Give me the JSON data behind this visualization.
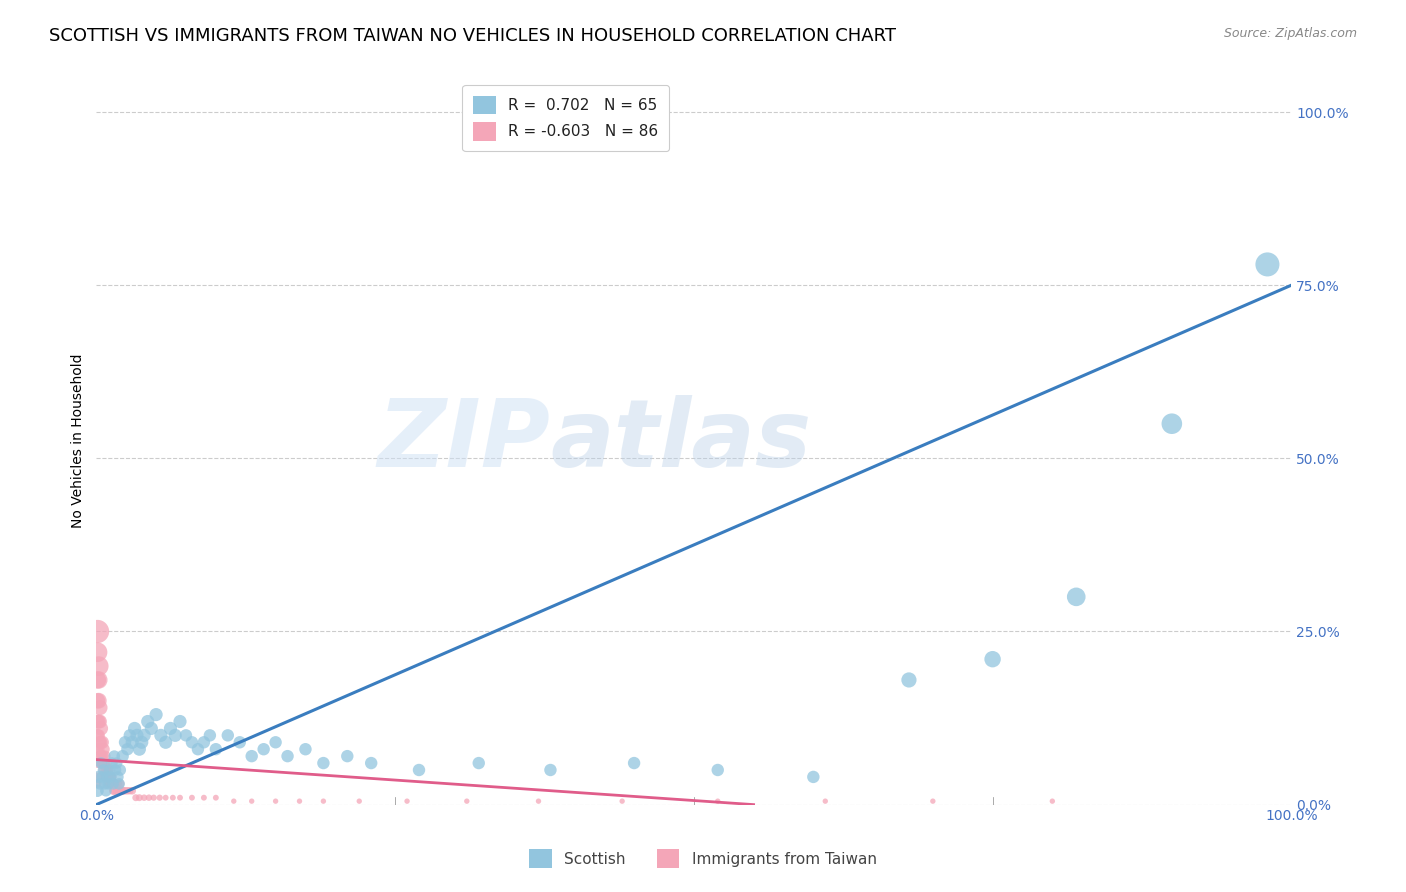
{
  "title": "SCOTTISH VS IMMIGRANTS FROM TAIWAN NO VEHICLES IN HOUSEHOLD CORRELATION CHART",
  "source": "Source: ZipAtlas.com",
  "ylabel": "No Vehicles in Household",
  "xlabel": "",
  "xlim": [
    0.0,
    1.0
  ],
  "ylim": [
    0.0,
    1.05
  ],
  "xtick_labels": [
    "0.0%",
    "100.0%"
  ],
  "ytick_labels": [
    "0.0%",
    "25.0%",
    "50.0%",
    "75.0%",
    "100.0%"
  ],
  "ytick_positions": [
    0.0,
    0.25,
    0.5,
    0.75,
    1.0
  ],
  "xtick_positions": [
    0.0,
    1.0
  ],
  "watermark_zip": "ZIP",
  "watermark_atlas": "atlas",
  "legend_r_blue": "R =  0.702",
  "legend_n_blue": "N = 65",
  "legend_r_pink": "R = -0.603",
  "legend_n_pink": "N = 86",
  "blue_color": "#92c5de",
  "pink_color": "#f4a6b8",
  "blue_line_color": "#3a7dbf",
  "pink_line_color": "#e05c8a",
  "blue_scatter": {
    "x": [
      0.001,
      0.002,
      0.003,
      0.004,
      0.005,
      0.006,
      0.007,
      0.008,
      0.009,
      0.01,
      0.011,
      0.012,
      0.013,
      0.014,
      0.015,
      0.016,
      0.017,
      0.018,
      0.019,
      0.02,
      0.022,
      0.024,
      0.026,
      0.028,
      0.03,
      0.032,
      0.034,
      0.036,
      0.038,
      0.04,
      0.043,
      0.046,
      0.05,
      0.054,
      0.058,
      0.062,
      0.066,
      0.07,
      0.075,
      0.08,
      0.085,
      0.09,
      0.095,
      0.1,
      0.11,
      0.12,
      0.13,
      0.14,
      0.15,
      0.16,
      0.175,
      0.19,
      0.21,
      0.23,
      0.27,
      0.32,
      0.38,
      0.45,
      0.52,
      0.6,
      0.68,
      0.75,
      0.82,
      0.9,
      0.98
    ],
    "y": [
      0.02,
      0.04,
      0.03,
      0.06,
      0.04,
      0.05,
      0.03,
      0.02,
      0.04,
      0.03,
      0.05,
      0.04,
      0.06,
      0.03,
      0.07,
      0.05,
      0.06,
      0.04,
      0.03,
      0.05,
      0.07,
      0.09,
      0.08,
      0.1,
      0.09,
      0.11,
      0.1,
      0.08,
      0.09,
      0.1,
      0.12,
      0.11,
      0.13,
      0.1,
      0.09,
      0.11,
      0.1,
      0.12,
      0.1,
      0.09,
      0.08,
      0.09,
      0.1,
      0.08,
      0.1,
      0.09,
      0.07,
      0.08,
      0.09,
      0.07,
      0.08,
      0.06,
      0.07,
      0.06,
      0.05,
      0.06,
      0.05,
      0.06,
      0.05,
      0.04,
      0.18,
      0.21,
      0.3,
      0.55,
      0.78
    ],
    "sizes": [
      80,
      80,
      70,
      70,
      70,
      70,
      70,
      70,
      70,
      70,
      70,
      70,
      70,
      70,
      70,
      70,
      70,
      70,
      70,
      70,
      80,
      80,
      80,
      80,
      90,
      90,
      90,
      90,
      90,
      90,
      90,
      90,
      90,
      90,
      90,
      90,
      90,
      90,
      80,
      80,
      80,
      80,
      80,
      80,
      80,
      80,
      80,
      80,
      80,
      80,
      80,
      80,
      80,
      80,
      80,
      80,
      80,
      80,
      80,
      80,
      120,
      140,
      180,
      220,
      300
    ]
  },
  "pink_scatter": {
    "x": [
      0.001,
      0.001,
      0.001,
      0.001,
      0.001,
      0.002,
      0.002,
      0.002,
      0.002,
      0.002,
      0.003,
      0.003,
      0.003,
      0.003,
      0.004,
      0.004,
      0.004,
      0.005,
      0.005,
      0.005,
      0.006,
      0.006,
      0.006,
      0.007,
      0.007,
      0.007,
      0.008,
      0.008,
      0.008,
      0.009,
      0.009,
      0.01,
      0.01,
      0.011,
      0.011,
      0.012,
      0.012,
      0.013,
      0.013,
      0.014,
      0.014,
      0.015,
      0.015,
      0.016,
      0.017,
      0.018,
      0.019,
      0.02,
      0.021,
      0.022,
      0.024,
      0.026,
      0.028,
      0.03,
      0.033,
      0.036,
      0.04,
      0.044,
      0.048,
      0.053,
      0.058,
      0.064,
      0.07,
      0.08,
      0.09,
      0.1,
      0.115,
      0.13,
      0.15,
      0.17,
      0.19,
      0.22,
      0.26,
      0.31,
      0.37,
      0.44,
      0.52,
      0.61,
      0.7,
      0.8,
      0.001,
      0.001,
      0.001,
      0.001,
      0.001,
      0.002
    ],
    "y": [
      0.22,
      0.18,
      0.15,
      0.12,
      0.1,
      0.18,
      0.15,
      0.12,
      0.1,
      0.08,
      0.14,
      0.12,
      0.09,
      0.07,
      0.11,
      0.09,
      0.07,
      0.09,
      0.07,
      0.06,
      0.08,
      0.06,
      0.05,
      0.07,
      0.06,
      0.04,
      0.06,
      0.05,
      0.04,
      0.05,
      0.04,
      0.05,
      0.03,
      0.04,
      0.03,
      0.04,
      0.03,
      0.04,
      0.03,
      0.03,
      0.02,
      0.03,
      0.02,
      0.03,
      0.02,
      0.03,
      0.02,
      0.03,
      0.02,
      0.02,
      0.02,
      0.02,
      0.02,
      0.02,
      0.01,
      0.01,
      0.01,
      0.01,
      0.01,
      0.01,
      0.01,
      0.01,
      0.01,
      0.01,
      0.01,
      0.01,
      0.005,
      0.005,
      0.005,
      0.005,
      0.005,
      0.005,
      0.005,
      0.005,
      0.005,
      0.005,
      0.005,
      0.005,
      0.005,
      0.005,
      0.08,
      0.06,
      0.04,
      0.03,
      0.25,
      0.2
    ],
    "sizes": [
      200,
      150,
      120,
      100,
      80,
      160,
      130,
      100,
      80,
      70,
      120,
      100,
      80,
      70,
      100,
      80,
      70,
      90,
      75,
      65,
      80,
      65,
      55,
      70,
      60,
      50,
      65,
      55,
      45,
      60,
      50,
      55,
      45,
      50,
      42,
      48,
      40,
      45,
      38,
      40,
      35,
      42,
      35,
      40,
      35,
      38,
      32,
      38,
      32,
      35,
      30,
      30,
      28,
      30,
      25,
      25,
      22,
      22,
      20,
      20,
      18,
      18,
      18,
      18,
      18,
      18,
      15,
      15,
      15,
      15,
      15,
      15,
      15,
      15,
      15,
      15,
      15,
      15,
      15,
      15,
      60,
      50,
      42,
      35,
      280,
      200
    ]
  },
  "blue_line": {
    "x0": 0.0,
    "y0": 0.0,
    "x1": 1.0,
    "y1": 0.75
  },
  "pink_line": {
    "x0": 0.0,
    "y0": 0.065,
    "x1": 0.55,
    "y1": 0.0
  },
  "grid_color": "#cccccc",
  "background_color": "#ffffff",
  "tick_color": "#4472c4",
  "title_fontsize": 13,
  "axis_label_fontsize": 10,
  "tick_fontsize": 10,
  "legend_fontsize": 11
}
